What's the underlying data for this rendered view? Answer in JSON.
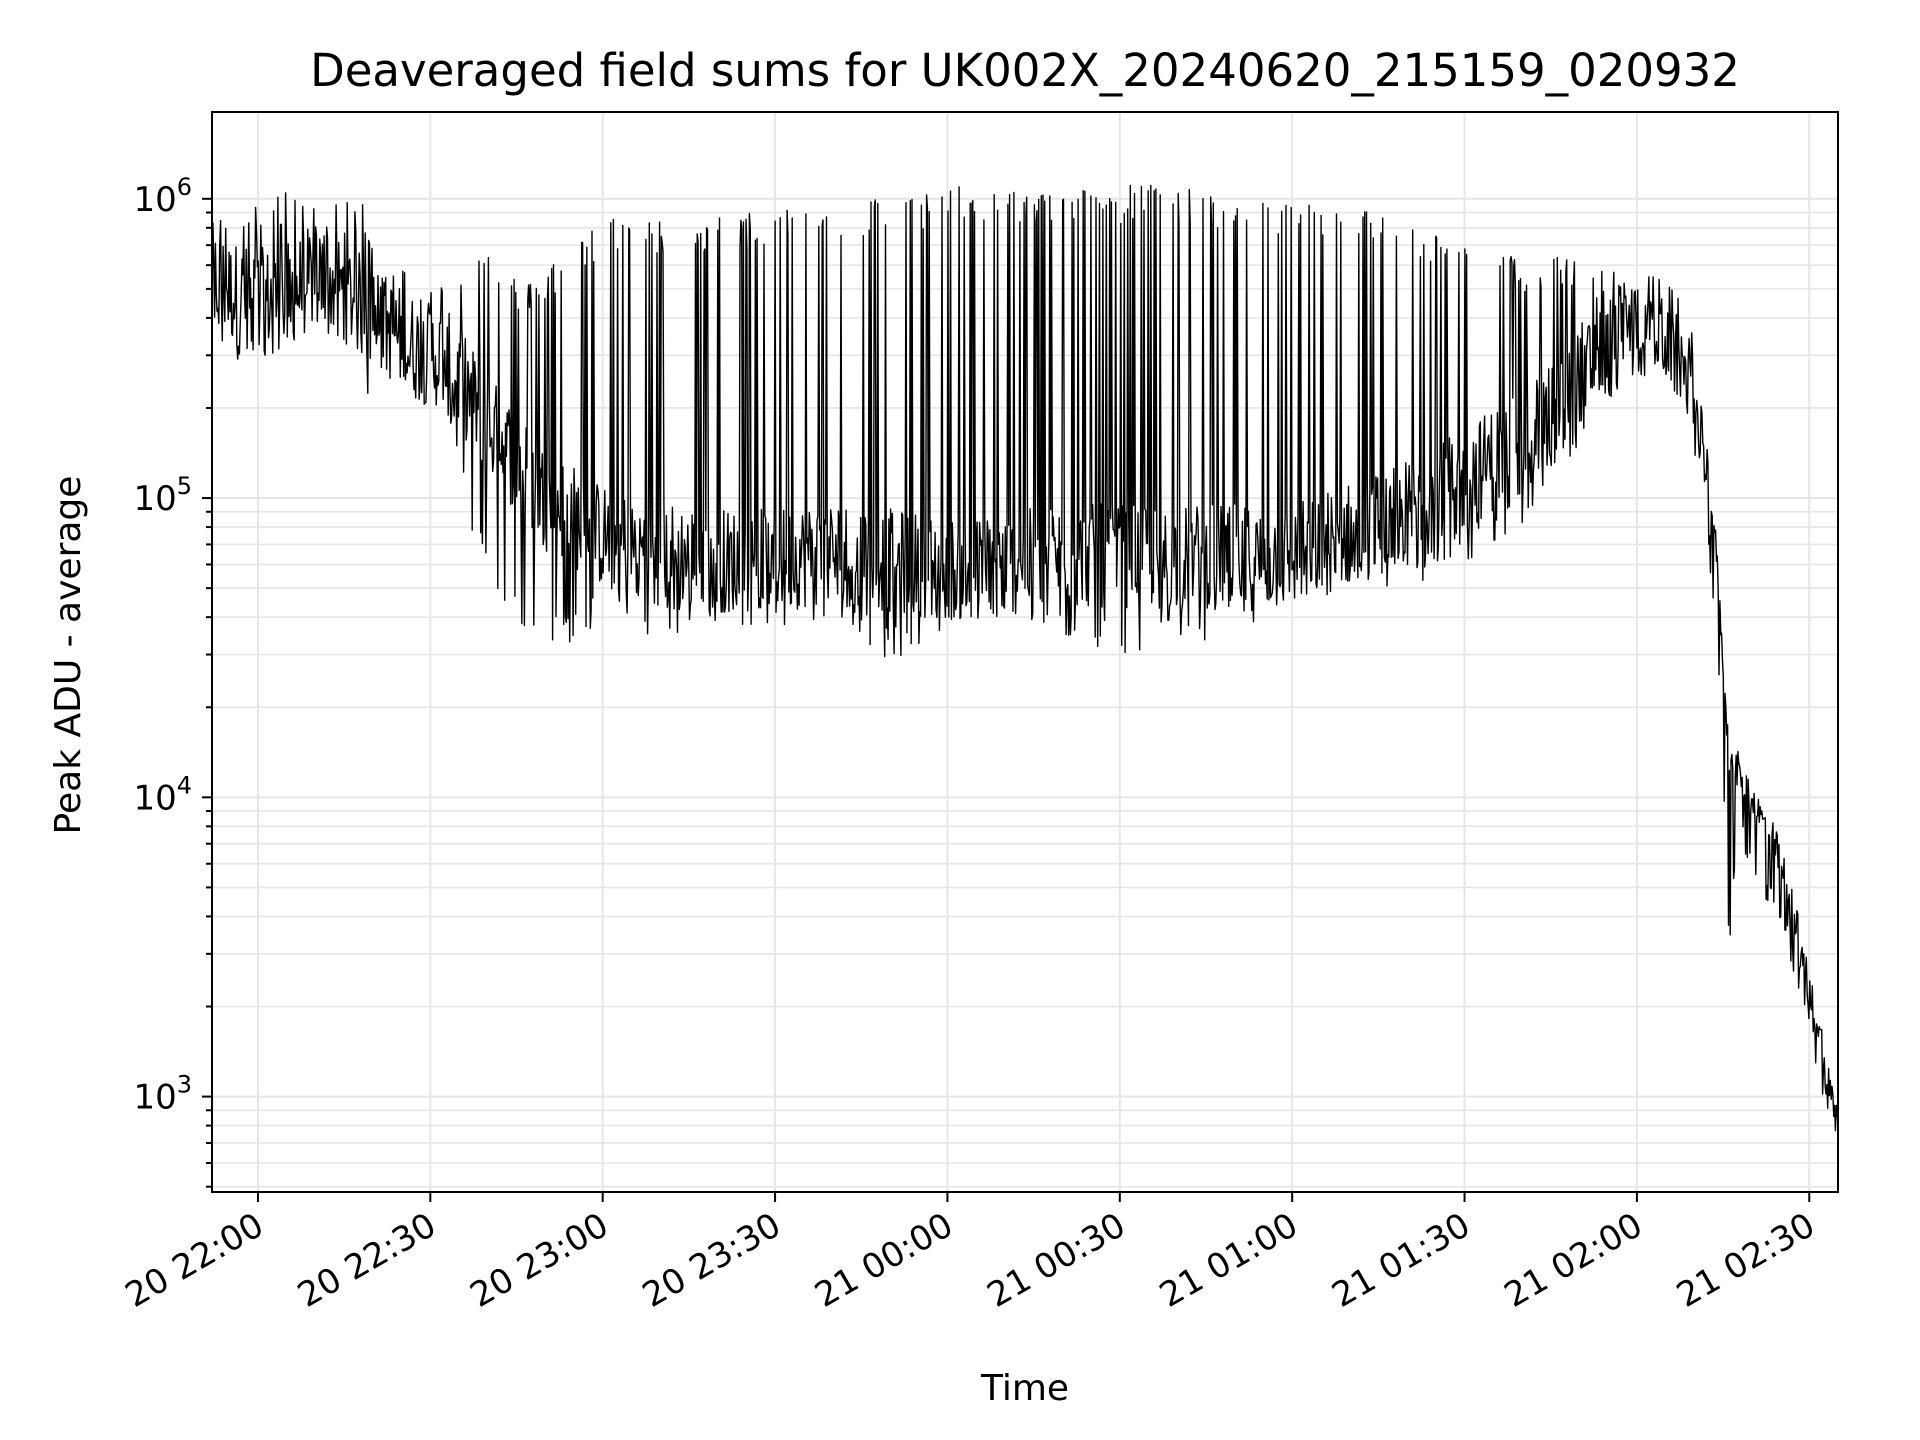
{
  "chart_data": {
    "type": "line",
    "title": "Deaveraged field sums for UK002X_20240620_215159_020932",
    "xlabel": "Time",
    "ylabel": "Peak ADU - average",
    "y_scale": "log",
    "ylim": [
      480,
      1950000
    ],
    "xlim": [
      "2024-06-20T21:52:00",
      "2024-06-21T02:35:00"
    ],
    "grid": true,
    "line_color": "#000000",
    "grid_color": "#e6e6e6",
    "x_ticks": [
      {
        "t": "2024-06-20T22:00:00",
        "label": "20 22:00"
      },
      {
        "t": "2024-06-20T22:30:00",
        "label": "20 22:30"
      },
      {
        "t": "2024-06-20T23:00:00",
        "label": "20 23:00"
      },
      {
        "t": "2024-06-20T23:30:00",
        "label": "20 23:30"
      },
      {
        "t": "2024-06-21T00:00:00",
        "label": "21 00:00"
      },
      {
        "t": "2024-06-21T00:30:00",
        "label": "21 00:30"
      },
      {
        "t": "2024-06-21T01:00:00",
        "label": "21 01:00"
      },
      {
        "t": "2024-06-21T01:30:00",
        "label": "21 01:30"
      },
      {
        "t": "2024-06-21T02:00:00",
        "label": "21 02:00"
      },
      {
        "t": "2024-06-21T02:30:00",
        "label": "21 02:30"
      }
    ],
    "y_ticks": [
      {
        "value": 1000,
        "base": "10",
        "exp": "3"
      },
      {
        "value": 10000,
        "base": "10",
        "exp": "4"
      },
      {
        "value": 100000,
        "base": "10",
        "exp": "5"
      },
      {
        "value": 1000000,
        "base": "10",
        "exp": "6"
      }
    ],
    "series": [
      {
        "x": [
          "2024-06-20T21:52:00",
          "2024-06-20T21:55:00",
          "2024-06-20T21:58:00",
          "2024-06-20T22:01:00",
          "2024-06-20T22:04:00",
          "2024-06-20T22:07:00",
          "2024-06-20T22:10:00",
          "2024-06-20T22:13:00",
          "2024-06-20T22:16:00",
          "2024-06-20T22:19:00",
          "2024-06-20T22:20:00",
          "2024-06-20T22:22:00",
          "2024-06-20T22:25:00",
          "2024-06-20T22:28:00",
          "2024-06-20T22:31:00",
          "2024-06-20T22:34:00",
          "2024-06-20T22:37:00",
          "2024-06-20T22:40:00",
          "2024-06-20T22:43:00",
          "2024-06-20T22:46:00",
          "2024-06-20T22:50:00",
          "2024-06-20T22:54:00",
          "2024-06-20T22:58:00",
          "2024-06-20T23:02:00",
          "2024-06-20T23:06:00",
          "2024-06-20T23:10:00",
          "2024-06-20T23:15:00",
          "2024-06-20T23:20:00",
          "2024-06-20T23:25:00",
          "2024-06-20T23:30:00",
          "2024-06-20T23:35:00",
          "2024-06-20T23:40:00",
          "2024-06-20T23:45:00",
          "2024-06-20T23:50:00",
          "2024-06-20T23:55:00",
          "2024-06-21T00:00:00",
          "2024-06-21T00:05:00",
          "2024-06-21T00:10:00",
          "2024-06-21T00:15:00",
          "2024-06-21T00:20:00",
          "2024-06-21T00:25:00",
          "2024-06-21T00:30:00",
          "2024-06-21T00:35:00",
          "2024-06-21T00:40:00",
          "2024-06-21T00:45:00",
          "2024-06-21T00:50:00",
          "2024-06-21T00:55:00",
          "2024-06-21T01:00:00",
          "2024-06-21T01:05:00",
          "2024-06-21T01:10:00",
          "2024-06-21T01:15:00",
          "2024-06-21T01:20:00",
          "2024-06-21T01:25:00",
          "2024-06-21T01:30:00",
          "2024-06-21T01:35:00",
          "2024-06-21T01:40:00",
          "2024-06-21T01:45:00",
          "2024-06-21T01:50:00",
          "2024-06-21T01:55:00",
          "2024-06-21T02:00:00",
          "2024-06-21T02:03:00",
          "2024-06-21T02:06:00",
          "2024-06-21T02:09:00",
          "2024-06-21T02:12:00",
          "2024-06-21T02:14:00",
          "2024-06-21T02:16:00",
          "2024-06-21T02:18:00",
          "2024-06-21T02:21:00",
          "2024-06-21T02:24:00",
          "2024-06-21T02:27:00",
          "2024-06-21T02:30:00",
          "2024-06-21T02:33:00",
          "2024-06-21T02:35:00"
        ],
        "baseline": [
          560000,
          490000,
          470000,
          460000,
          470000,
          500000,
          560000,
          520000,
          480000,
          420000,
          390000,
          380000,
          340000,
          310000,
          300000,
          270000,
          220000,
          175000,
          150000,
          125000,
          100000,
          90000,
          78000,
          72000,
          68000,
          66000,
          64000,
          62000,
          62000,
          62000,
          64000,
          66000,
          64000,
          62000,
          60000,
          58000,
          58000,
          60000,
          62000,
          64000,
          64000,
          64000,
          64000,
          64000,
          64000,
          64000,
          62000,
          64000,
          70000,
          76000,
          82000,
          90000,
          100000,
          115000,
          135000,
          160000,
          200000,
          260000,
          320000,
          370000,
          380000,
          340000,
          270000,
          150000,
          60000,
          14000,
          12000,
          9000,
          7000,
          4500,
          2300,
          1300,
          800
        ],
        "peak": [
          1000000,
          950000,
          900000,
          1000000,
          1050000,
          1150000,
          1000000,
          950000,
          980000,
          1000000,
          700000,
          650000,
          600000,
          550000,
          500000,
          600000,
          650000,
          700000,
          650000,
          500000,
          600000,
          700000,
          800000,
          900000,
          880000,
          850000,
          860000,
          880000,
          900000,
          950000,
          960000,
          1000000,
          1000000,
          1050000,
          1050000,
          1100000,
          1100000,
          1100000,
          1050000,
          1100000,
          1100000,
          1100000,
          1150000,
          1100000,
          1050000,
          1000000,
          1000000,
          980000,
          970000,
          950000,
          900000,
          850000,
          800000,
          700000,
          650000,
          650000,
          650000,
          620000,
          580000,
          560000,
          500000,
          400000,
          350000,
          250000,
          80000,
          15000,
          14000,
          11000,
          8000,
          5500,
          2800,
          1600,
          1000
        ],
        "trough": [
          350000,
          320000,
          300000,
          280000,
          330000,
          400000,
          420000,
          380000,
          330000,
          220000,
          320000,
          300000,
          280000,
          260000,
          240000,
          180000,
          80000,
          60000,
          50000,
          35000,
          33000,
          36000,
          40000,
          42000,
          40000,
          38000,
          38000,
          40000,
          42000,
          40000,
          40000,
          42000,
          38000,
          30000,
          35000,
          40000,
          40000,
          42000,
          40000,
          38000,
          36000,
          30000,
          35000,
          38000,
          36000,
          40000,
          40000,
          45000,
          48000,
          50000,
          52000,
          55000,
          60000,
          65000,
          75000,
          90000,
          120000,
          160000,
          220000,
          280000,
          300000,
          260000,
          200000,
          100000,
          30000,
          3500,
          7000,
          5500,
          4000,
          3000,
          1700,
          950,
          680
        ]
      }
    ]
  }
}
